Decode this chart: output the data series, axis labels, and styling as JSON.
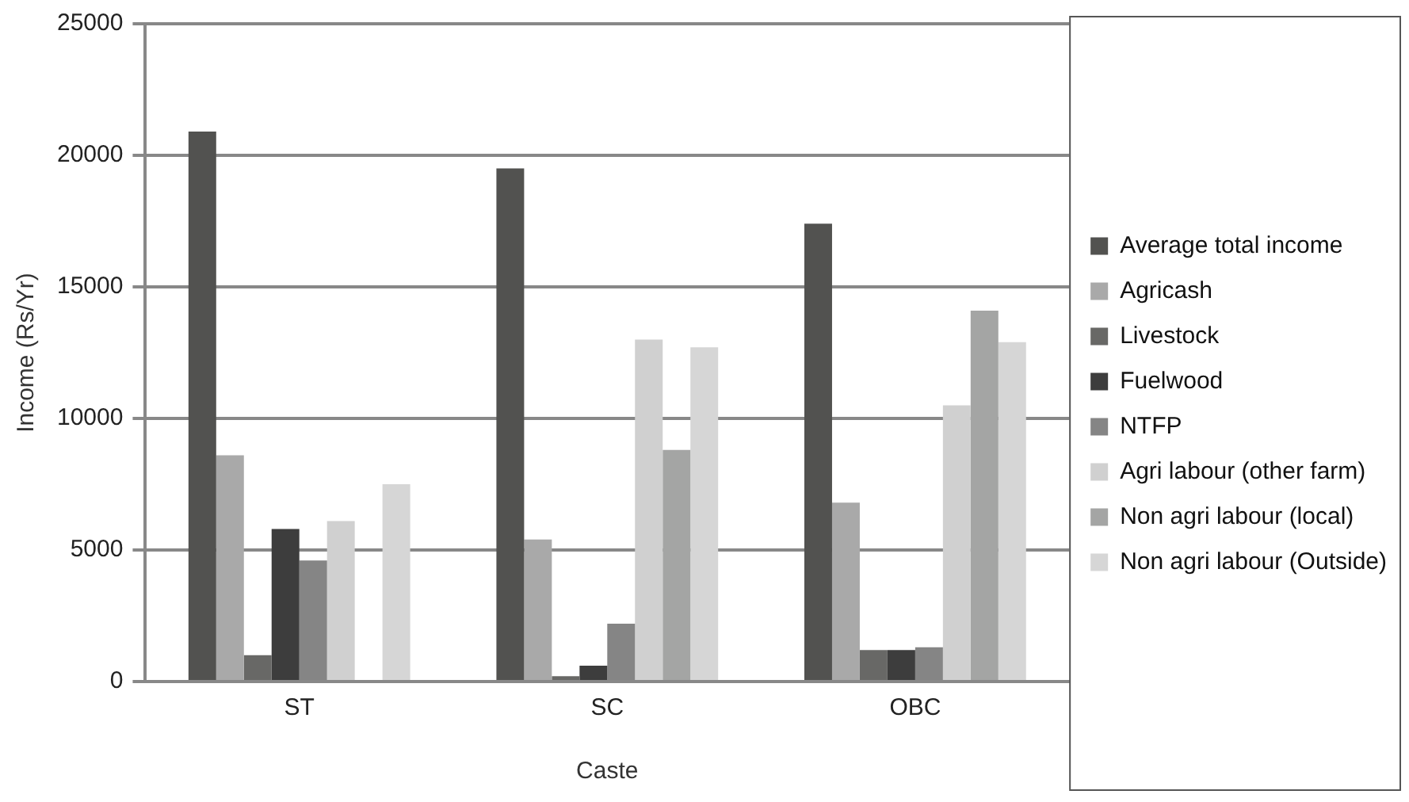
{
  "chart_data": {
    "type": "bar",
    "xlabel": "Caste",
    "ylabel": "Income (Rs/Yr)",
    "categories": [
      "ST",
      "SC",
      "OBC"
    ],
    "series": [
      {
        "name": "Average total income",
        "color": "#525250",
        "values": [
          20900,
          19500,
          17400
        ]
      },
      {
        "name": "Agricash",
        "color": "#a9a9a9",
        "values": [
          8600,
          5400,
          6800
        ]
      },
      {
        "name": "Livestock",
        "color": "#686866",
        "values": [
          1000,
          200,
          1200
        ]
      },
      {
        "name": "Fuelwood",
        "color": "#3d3d3d",
        "values": [
          5800,
          600,
          1200
        ]
      },
      {
        "name": "NTFP",
        "color": "#858585",
        "values": [
          4600,
          2200,
          1300
        ]
      },
      {
        "name": "Agri labour (other farm)",
        "color": "#d0d0d0",
        "values": [
          6100,
          13000,
          10500
        ]
      },
      {
        "name": "Non agri labour (local)",
        "color": "#a4a5a4",
        "values": [
          0,
          8800,
          14100
        ]
      },
      {
        "name": "Non agri labour (Outside)",
        "color": "#d6d6d6",
        "values": [
          7500,
          12700,
          12900
        ]
      }
    ],
    "ylim": [
      0,
      25000
    ],
    "yticks": [
      0,
      5000,
      10000,
      15000,
      20000,
      25000
    ],
    "grid": "y",
    "legend": "right"
  }
}
